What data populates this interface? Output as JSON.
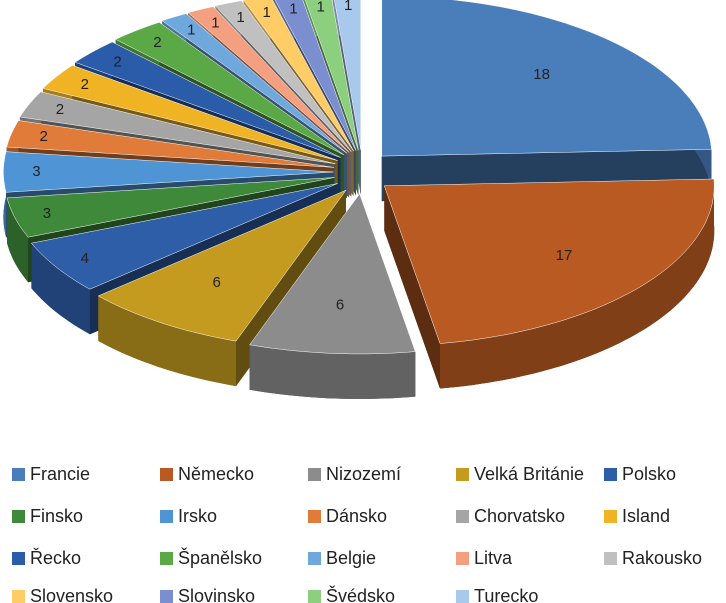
{
  "chart_data": {
    "type": "pie3d",
    "categories": [
      "Francie",
      "Německo",
      "Nizozemí",
      "Velká Británie",
      "Polsko",
      "Finsko",
      "Irsko",
      "Dánsko",
      "Chorvatsko",
      "Island",
      "Řecko",
      "Španělsko",
      "Belgie",
      "Litva",
      "Rakousko",
      "Slovensko",
      "Slovinsko",
      "Švédsko",
      "Turecko"
    ],
    "values": [
      18,
      17,
      6,
      6,
      4,
      3,
      3,
      2,
      2,
      2,
      2,
      2,
      1,
      1,
      1,
      1,
      1,
      1,
      1
    ],
    "colors": [
      "#4a7ebb",
      "#b85a22",
      "#8c8c8c",
      "#c49a1f",
      "#2e5ea8",
      "#3f8a3a",
      "#4f95d6",
      "#e07b39",
      "#a5a5a5",
      "#f0b323",
      "#2a5caa",
      "#5aa846",
      "#6fa8dc",
      "#f4a080",
      "#c0c0c0",
      "#ffcc66",
      "#7b8fd0",
      "#8ccf7e",
      "#a8c8ec"
    ],
    "legend": "bottom"
  }
}
